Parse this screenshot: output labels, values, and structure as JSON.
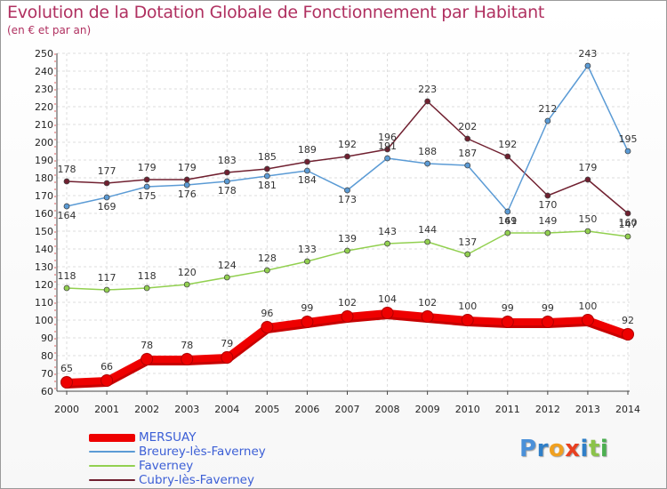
{
  "chart_data": {
    "type": "line",
    "title": "Evolution de la Dotation Globale de Fonctionnement par Habitant",
    "subtitle": "(en € et par an)",
    "xlabel": "",
    "ylabel": "",
    "ylim": [
      60,
      250
    ],
    "ystep": 10,
    "grid": true,
    "x": [
      "2000",
      "2001",
      "2002",
      "2003",
      "2004",
      "2005",
      "2006",
      "2007",
      "2008",
      "2009",
      "2010",
      "2011",
      "2012",
      "2013",
      "2014"
    ],
    "series": [
      {
        "name": "MERSUAY",
        "color": "#ee0000",
        "values": [
          65,
          66,
          78,
          78,
          79,
          96,
          99,
          102,
          104,
          102,
          100,
          99,
          99,
          100,
          92
        ],
        "label_position": "above"
      },
      {
        "name": "Breurey-lès-Faverney",
        "color": "#5b9bd5",
        "values": [
          164,
          169,
          175,
          176,
          178,
          181,
          184,
          173,
          191,
          188,
          187,
          161,
          212,
          243,
          195
        ],
        "label_position": "mixed"
      },
      {
        "name": "Faverney",
        "color": "#92d050",
        "values": [
          118,
          117,
          118,
          120,
          124,
          128,
          133,
          139,
          143,
          144,
          137,
          149,
          149,
          150,
          147
        ],
        "label_position": "above"
      },
      {
        "name": "Cubry-lès-Faverney",
        "color": "#702030",
        "values": [
          178,
          177,
          179,
          179,
          183,
          185,
          189,
          192,
          196,
          223,
          202,
          192,
          170,
          179,
          160
        ],
        "label_position": "mixed"
      }
    ]
  },
  "legend": {
    "items": [
      {
        "label": "MERSUAY",
        "color": "#ee0000"
      },
      {
        "label": "Breurey-lès-Faverney",
        "color": "#5b9bd5"
      },
      {
        "label": "Faverney",
        "color": "#92d050"
      },
      {
        "label": "Cubry-lès-Faverney",
        "color": "#702030"
      }
    ]
  },
  "logo": {
    "letters": [
      "P",
      "r",
      "o",
      "x",
      "i",
      "t",
      "i"
    ],
    "colors": [
      "#4a90d9",
      "#2f7fc8",
      "#f0a020",
      "#e84020",
      "#2f7fc8",
      "#8bc34a",
      "#4caf50"
    ]
  }
}
